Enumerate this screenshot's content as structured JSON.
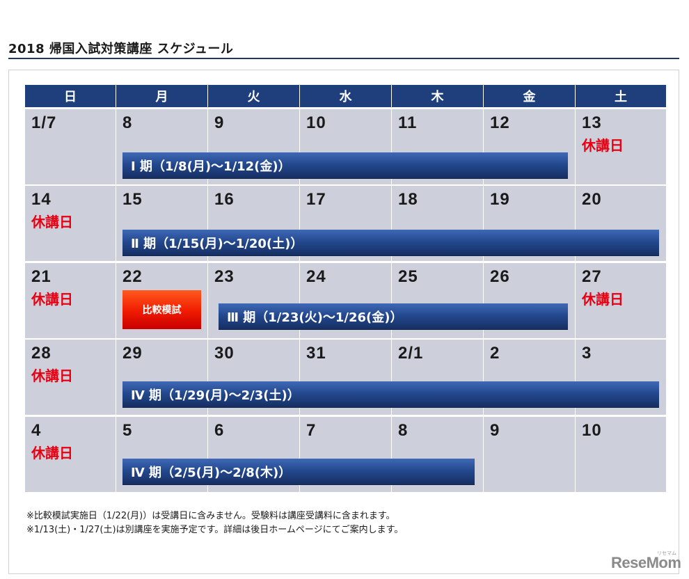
{
  "title": "2018 帰国入試対策講座 スケジュール",
  "weekdays": [
    "日",
    "月",
    "火",
    "水",
    "木",
    "金",
    "土"
  ],
  "weeks": [
    {
      "days": [
        "1/7",
        "8",
        "9",
        "10",
        "11",
        "12",
        "13"
      ],
      "closed": [
        "",
        "",
        "",
        "",
        "",
        "",
        "休講日"
      ]
    },
    {
      "days": [
        "14",
        "15",
        "16",
        "17",
        "18",
        "19",
        "20"
      ],
      "closed": [
        "休講日",
        "",
        "",
        "",
        "",
        "",
        ""
      ]
    },
    {
      "days": [
        "21",
        "22",
        "23",
        "24",
        "25",
        "26",
        "27"
      ],
      "closed": [
        "休講日",
        "",
        "",
        "",
        "",
        "",
        "休講日"
      ]
    },
    {
      "days": [
        "28",
        "29",
        "30",
        "31",
        "2/1",
        "2",
        "3"
      ],
      "closed": [
        "休講日",
        "",
        "",
        "",
        "",
        "",
        ""
      ]
    },
    {
      "days": [
        "4",
        "5",
        "6",
        "7",
        "8",
        "9",
        "10"
      ],
      "closed": [
        "休講日",
        "",
        "",
        "",
        "",
        "",
        ""
      ]
    }
  ],
  "periods": [
    {
      "label": "Ⅰ 期（1/8(月)〜1/12(金)）"
    },
    {
      "label": "Ⅱ 期（1/15(月)〜1/20(土)）"
    },
    {
      "label": "Ⅲ 期（1/23(火)〜1/26(金)）"
    },
    {
      "label": "Ⅳ 期（1/29(月)〜2/3(土)）"
    },
    {
      "label": "Ⅳ 期（2/5(月)〜2/8(木)）"
    }
  ],
  "mock_exam_label": "比較模試",
  "notes": [
    "※比較模試実施日（1/22(月)）は受講日に含みません。受験料は講座受講料に含まれます。",
    "※1/13(土)・1/27(土)は別講座を実施予定です。詳細は後日ホームページにてご案内します。"
  ],
  "logo": "ReseMom",
  "logo_small": "リセマム",
  "colors": {
    "header": "#1e3f7b",
    "cell": "#cdd0db",
    "closed": "#e60012",
    "bar": "#24498f",
    "exam": "#f01a00"
  }
}
